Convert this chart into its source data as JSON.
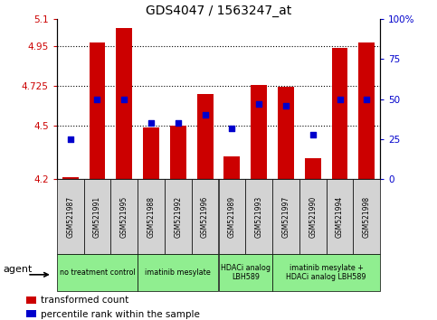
{
  "title": "GDS4047 / 1563247_at",
  "samples": [
    "GSM521987",
    "GSM521991",
    "GSM521995",
    "GSM521988",
    "GSM521992",
    "GSM521996",
    "GSM521989",
    "GSM521993",
    "GSM521997",
    "GSM521990",
    "GSM521994",
    "GSM521998"
  ],
  "red_values": [
    4.21,
    4.97,
    5.05,
    4.49,
    4.5,
    4.68,
    4.33,
    4.73,
    4.72,
    4.32,
    4.94,
    4.97
  ],
  "blue_values": [
    25,
    50,
    50,
    35,
    35,
    40,
    32,
    47,
    46,
    28,
    50,
    50
  ],
  "ylim_left": [
    4.2,
    5.1
  ],
  "ylim_right": [
    0,
    100
  ],
  "yticks_left": [
    4.2,
    4.5,
    4.725,
    4.95,
    5.1
  ],
  "ytick_labels_left": [
    "4.2",
    "4.5",
    "4.725",
    "4.95",
    "5.1"
  ],
  "yticks_right": [
    0,
    25,
    50,
    75,
    100
  ],
  "ytick_labels_right": [
    "0",
    "25",
    "50",
    "75",
    "100%"
  ],
  "hlines": [
    4.5,
    4.725,
    4.95
  ],
  "group_configs": [
    {
      "label": "no treatment control",
      "indices": [
        0,
        1,
        2
      ],
      "color": "#90EE90"
    },
    {
      "label": "imatinib mesylate",
      "indices": [
        3,
        4,
        5
      ],
      "color": "#90EE90"
    },
    {
      "label": "HDACi analog\nLBH589",
      "indices": [
        6,
        7
      ],
      "color": "#90EE90"
    },
    {
      "label": "imatinib mesylate +\nHDACi analog LBH589",
      "indices": [
        8,
        9,
        10,
        11
      ],
      "color": "#90EE90"
    }
  ],
  "bar_color": "#CC0000",
  "blue_dot_color": "#0000CC",
  "legend_labels": [
    "transformed count",
    "percentile rank within the sample"
  ],
  "agent_label": "agent",
  "left_tick_color": "#CC0000",
  "right_tick_color": "#0000CC"
}
